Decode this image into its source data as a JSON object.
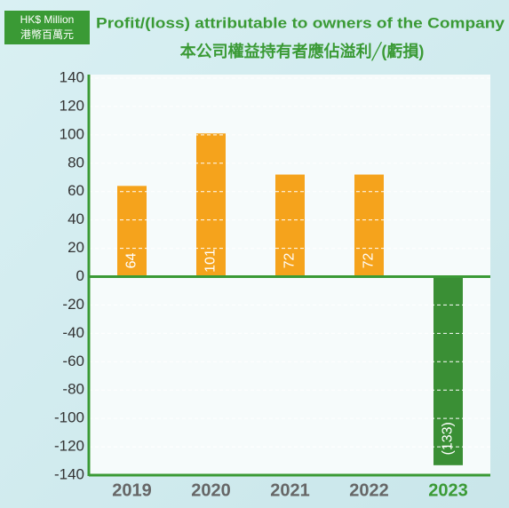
{
  "chart_data": {
    "type": "bar",
    "title": "Profit/(loss) attributable to owners of the Company",
    "subtitle": "本公司權益持有者應佔溢利╱(虧損)",
    "unit_label": [
      "HK$ Million",
      "港幣百萬元"
    ],
    "categories": [
      "2019",
      "2020",
      "2021",
      "2022",
      "2023"
    ],
    "values": [
      64,
      101,
      72,
      72,
      -133
    ],
    "value_labels": [
      "64",
      "101",
      "72",
      "72",
      "(133)"
    ],
    "colors": [
      "#f5a31c",
      "#f5a31c",
      "#f5a31c",
      "#f5a31c",
      "#3a8f35"
    ],
    "category_label_colors": [
      "#666666",
      "#666666",
      "#666666",
      "#666666",
      "#3a9a35"
    ],
    "ylim": [
      -140,
      140
    ],
    "yticks": [
      140,
      120,
      100,
      80,
      60,
      40,
      20,
      0,
      -20,
      -40,
      -60,
      -80,
      -100,
      -120,
      -140
    ],
    "grid": true
  }
}
